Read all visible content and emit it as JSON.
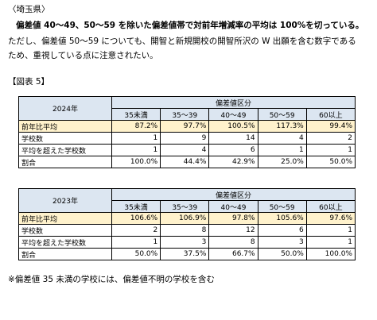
{
  "heading": "〈埼玉県〉",
  "lead": "偏差値 40～49、50～59 を除いた偏差値帯で対前年増減率の平均は 100%を切っている。",
  "para": [
    "ただし、偏差値 50～59 についても、開智と新規開校の開智所沢の W 出願を含む数字である",
    "ため、重視している点に注意されたい。"
  ],
  "figure_label": "【図表 5】",
  "tables": [
    {
      "year": "2024年",
      "group_header": "偏差値区分",
      "columns": [
        "35未満",
        "35～39",
        "40～49",
        "50～59",
        "60以上"
      ],
      "rows": [
        {
          "label": "前年比平均",
          "cells": [
            "87.2%",
            "97.7%",
            "100.5%",
            "117.3%",
            "99.4%"
          ]
        },
        {
          "label": "学校数",
          "cells": [
            "1",
            "9",
            "14",
            "4",
            "2"
          ]
        },
        {
          "label": "平均を超えた学校数",
          "cells": [
            "1",
            "4",
            "6",
            "1",
            "1"
          ]
        },
        {
          "label": "割合",
          "cells": [
            "100.0%",
            "44.4%",
            "42.9%",
            "25.0%",
            "50.0%"
          ]
        }
      ]
    },
    {
      "year": "2023年",
      "group_header": "偏差値区分",
      "columns": [
        "35未満",
        "35～39",
        "40～49",
        "50～59",
        "60以上"
      ],
      "rows": [
        {
          "label": "前年比平均",
          "cells": [
            "106.6%",
            "106.9%",
            "97.8%",
            "105.6%",
            "97.6%"
          ]
        },
        {
          "label": "学校数",
          "cells": [
            "2",
            "8",
            "12",
            "6",
            "1"
          ]
        },
        {
          "label": "平均を超えた学校数",
          "cells": [
            "1",
            "3",
            "8",
            "3",
            "1"
          ]
        },
        {
          "label": "割合",
          "cells": [
            "50.0%",
            "37.5%",
            "66.7%",
            "50.0%",
            "100.0%"
          ]
        }
      ]
    }
  ],
  "footnote": "※偏差値 35 未満の学校には、偏差値不明の学校を含む"
}
